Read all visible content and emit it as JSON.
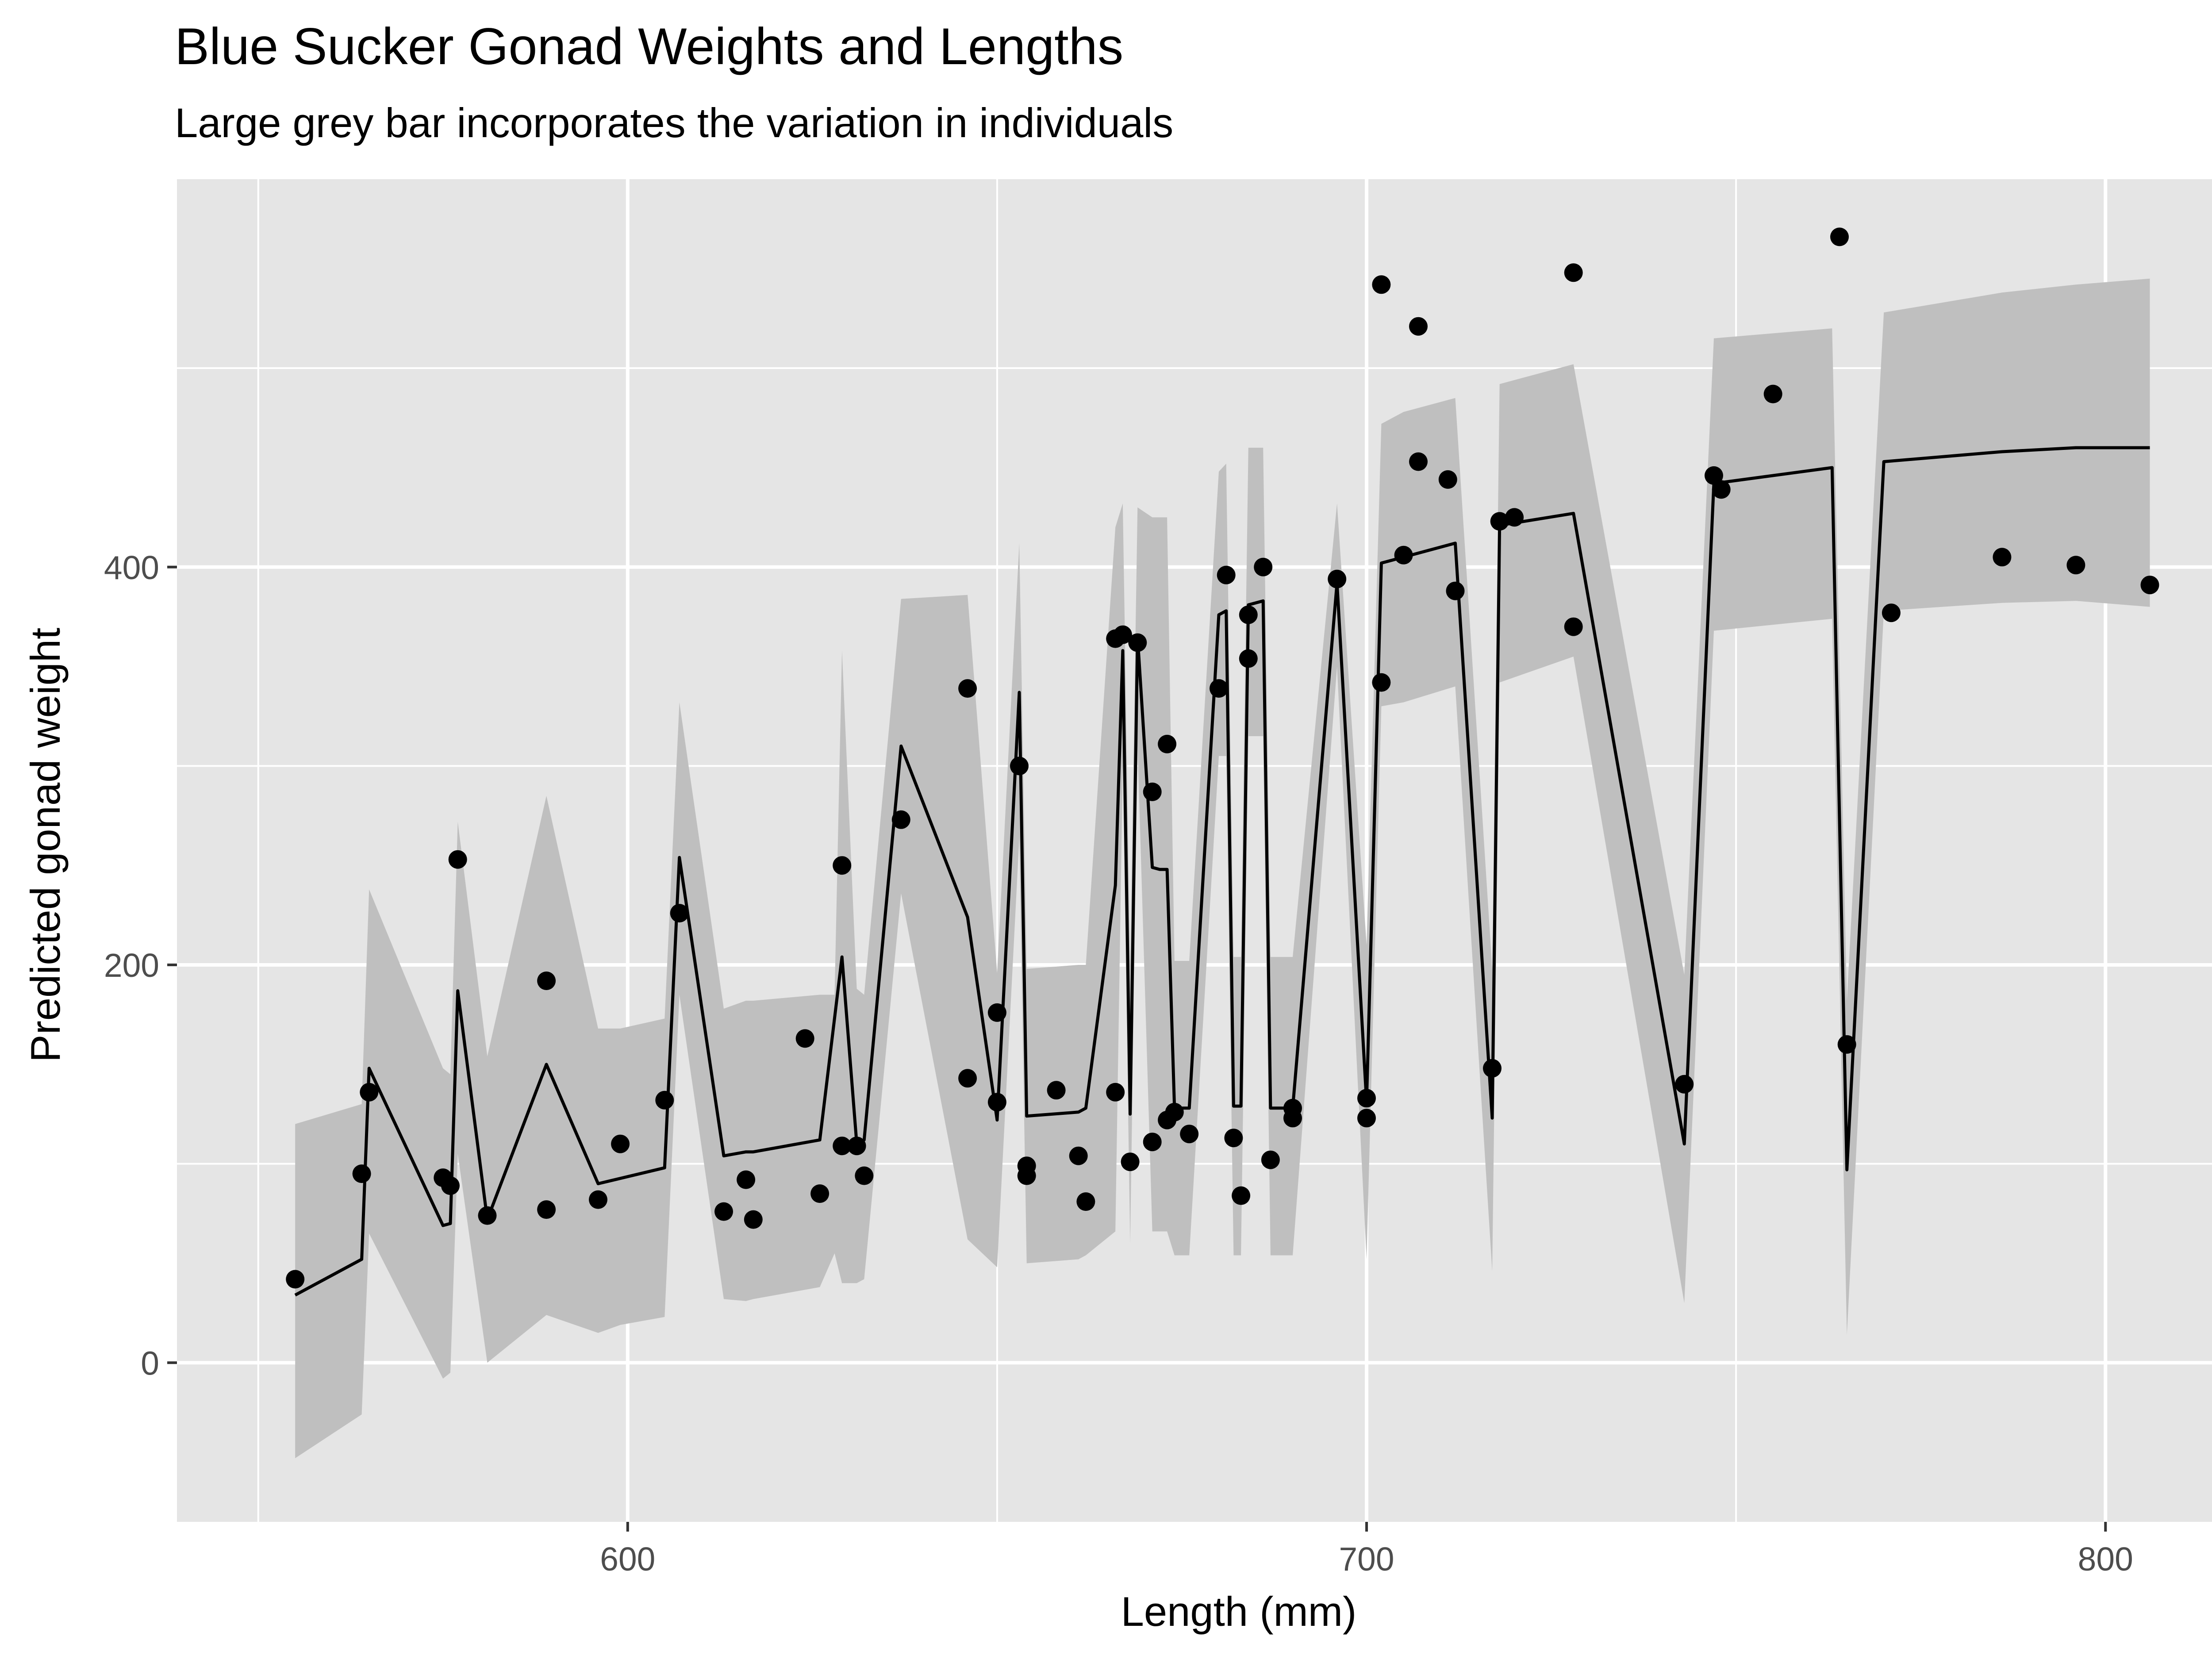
{
  "chart_data": {
    "type": "scatter",
    "title": "Blue Sucker Gonad Weights and Lengths",
    "subtitle": "Large grey bar incorporates the variation in individuals",
    "xlabel": "Length (mm)",
    "ylabel": "Predicted gonad weight",
    "xlim": [
      539,
      821
    ],
    "ylim": [
      -80,
      595
    ],
    "x_ticks": [
      600,
      700,
      800
    ],
    "y_ticks": [
      0,
      200,
      400
    ],
    "x_minor_ticks": [
      550,
      650,
      750
    ],
    "y_minor_ticks": [
      -100,
      100,
      300,
      500
    ],
    "grid": true,
    "legend": "none",
    "colors": {
      "panel": "#e5e5e5",
      "grid": "#ffffff",
      "band": "#bfbfbf",
      "line": "#000000",
      "points": "#000000",
      "tick_label": "#4d4d4d"
    },
    "points": [
      [
        555,
        42
      ],
      [
        564,
        95
      ],
      [
        565,
        136
      ],
      [
        575,
        93
      ],
      [
        576,
        89
      ],
      [
        577,
        253
      ],
      [
        581,
        74
      ],
      [
        589,
        192
      ],
      [
        589,
        77
      ],
      [
        596,
        82
      ],
      [
        599,
        110
      ],
      [
        605,
        132
      ],
      [
        607,
        226
      ],
      [
        613,
        76
      ],
      [
        616,
        92
      ],
      [
        617,
        72
      ],
      [
        624,
        163
      ],
      [
        626,
        85
      ],
      [
        629,
        109
      ],
      [
        629,
        250
      ],
      [
        631,
        109
      ],
      [
        632,
        94
      ],
      [
        637,
        273
      ],
      [
        646,
        339
      ],
      [
        646,
        143
      ],
      [
        650,
        176
      ],
      [
        650,
        131
      ],
      [
        653,
        300
      ],
      [
        654,
        99
      ],
      [
        654,
        94
      ],
      [
        658,
        137
      ],
      [
        661,
        104
      ],
      [
        662,
        81
      ],
      [
        666,
        364
      ],
      [
        666,
        136
      ],
      [
        667,
        366
      ],
      [
        668,
        101
      ],
      [
        669,
        362
      ],
      [
        671,
        287
      ],
      [
        671,
        111
      ],
      [
        673,
        311
      ],
      [
        673,
        122
      ],
      [
        674,
        126
      ],
      [
        676,
        115
      ],
      [
        680,
        339
      ],
      [
        681,
        396
      ],
      [
        682,
        113
      ],
      [
        683,
        84
      ],
      [
        684,
        376
      ],
      [
        684,
        354
      ],
      [
        686,
        400
      ],
      [
        687,
        102
      ],
      [
        690,
        128
      ],
      [
        690,
        123
      ],
      [
        696,
        394
      ],
      [
        700,
        133
      ],
      [
        700,
        123
      ],
      [
        702,
        342
      ],
      [
        702,
        542
      ],
      [
        705,
        406
      ],
      [
        707,
        453
      ],
      [
        707,
        521
      ],
      [
        711,
        444
      ],
      [
        712,
        388
      ],
      [
        717,
        148
      ],
      [
        718,
        423
      ],
      [
        720,
        425
      ],
      [
        728,
        548
      ],
      [
        728,
        370
      ],
      [
        743,
        140
      ],
      [
        747,
        446
      ],
      [
        748,
        439
      ],
      [
        755,
        487
      ],
      [
        764,
        566
      ],
      [
        765,
        160
      ],
      [
        771,
        377
      ],
      [
        786,
        405
      ],
      [
        796,
        401
      ],
      [
        806,
        391
      ]
    ],
    "fit_line": [
      [
        555,
        34
      ],
      [
        564,
        52
      ],
      [
        565,
        148
      ],
      [
        575,
        69
      ],
      [
        576,
        70
      ],
      [
        577,
        187
      ],
      [
        581,
        72
      ],
      [
        589,
        150
      ],
      [
        596,
        90
      ],
      [
        605,
        98
      ],
      [
        607,
        254
      ],
      [
        613,
        104
      ],
      [
        616,
        106
      ],
      [
        617,
        106
      ],
      [
        626,
        112
      ],
      [
        629,
        204
      ],
      [
        631,
        110
      ],
      [
        632,
        112
      ],
      [
        637,
        310
      ],
      [
        646,
        224
      ],
      [
        650,
        122
      ],
      [
        653,
        337
      ],
      [
        654,
        124
      ],
      [
        661,
        126
      ],
      [
        662,
        128
      ],
      [
        666,
        240
      ],
      [
        667,
        358
      ],
      [
        668,
        125
      ],
      [
        669,
        365
      ],
      [
        671,
        249
      ],
      [
        672,
        248
      ],
      [
        673,
        248
      ],
      [
        674,
        128
      ],
      [
        676,
        128
      ],
      [
        680,
        376
      ],
      [
        681,
        378
      ],
      [
        682,
        129
      ],
      [
        683,
        129
      ],
      [
        684,
        381
      ],
      [
        686,
        383
      ],
      [
        687,
        128
      ],
      [
        690,
        128
      ],
      [
        696,
        392
      ],
      [
        700,
        131
      ],
      [
        702,
        402
      ],
      [
        712,
        412
      ],
      [
        717,
        123
      ],
      [
        718,
        421
      ],
      [
        728,
        427
      ],
      [
        743,
        110
      ],
      [
        747,
        442
      ],
      [
        763,
        450
      ],
      [
        765,
        97
      ],
      [
        770,
        453
      ],
      [
        786,
        458
      ],
      [
        796,
        460
      ],
      [
        806,
        460
      ]
    ],
    "ribbon_lower": [
      [
        555,
        -48
      ],
      [
        564,
        -26
      ],
      [
        565,
        65
      ],
      [
        575,
        -8
      ],
      [
        576,
        -5
      ],
      [
        577,
        105
      ],
      [
        581,
        0
      ],
      [
        589,
        24
      ],
      [
        596,
        15
      ],
      [
        599,
        19
      ],
      [
        605,
        23
      ],
      [
        607,
        185
      ],
      [
        613,
        32
      ],
      [
        616,
        31
      ],
      [
        617,
        32
      ],
      [
        626,
        38
      ],
      [
        628,
        55
      ],
      [
        629,
        40
      ],
      [
        631,
        40
      ],
      [
        632,
        42
      ],
      [
        637,
        236
      ],
      [
        646,
        62
      ],
      [
        650,
        48
      ],
      [
        653,
        264
      ],
      [
        654,
        50
      ],
      [
        661,
        52
      ],
      [
        662,
        54
      ],
      [
        666,
        66
      ],
      [
        667,
        300
      ],
      [
        668,
        60
      ],
      [
        669,
        310
      ],
      [
        671,
        66
      ],
      [
        673,
        66
      ],
      [
        674,
        54
      ],
      [
        676,
        54
      ],
      [
        680,
        305
      ],
      [
        681,
        305
      ],
      [
        682,
        54
      ],
      [
        683,
        54
      ],
      [
        684,
        315
      ],
      [
        686,
        315
      ],
      [
        687,
        54
      ],
      [
        690,
        54
      ],
      [
        696,
        350
      ],
      [
        700,
        52
      ],
      [
        702,
        330
      ],
      [
        705,
        332
      ],
      [
        712,
        340
      ],
      [
        717,
        46
      ],
      [
        718,
        342
      ],
      [
        728,
        355
      ],
      [
        743,
        30
      ],
      [
        747,
        368
      ],
      [
        763,
        374
      ],
      [
        765,
        14
      ],
      [
        770,
        378
      ],
      [
        786,
        382
      ],
      [
        796,
        383
      ],
      [
        806,
        380
      ]
    ],
    "ribbon_upper": [
      [
        806,
        545
      ],
      [
        796,
        542
      ],
      [
        786,
        538
      ],
      [
        770,
        528
      ],
      [
        765,
        182
      ],
      [
        763,
        520
      ],
      [
        747,
        515
      ],
      [
        743,
        195
      ],
      [
        728,
        502
      ],
      [
        718,
        492
      ],
      [
        717,
        198
      ],
      [
        712,
        485
      ],
      [
        705,
        478
      ],
      [
        702,
        472
      ],
      [
        700,
        210
      ],
      [
        696,
        432
      ],
      [
        690,
        204
      ],
      [
        687,
        204
      ],
      [
        686,
        460
      ],
      [
        684,
        460
      ],
      [
        683,
        204
      ],
      [
        682,
        204
      ],
      [
        681,
        452
      ],
      [
        680,
        448
      ],
      [
        676,
        202
      ],
      [
        674,
        202
      ],
      [
        673,
        425
      ],
      [
        671,
        425
      ],
      [
        669,
        430
      ],
      [
        668,
        200
      ],
      [
        667,
        432
      ],
      [
        666,
        420
      ],
      [
        662,
        200
      ],
      [
        661,
        200
      ],
      [
        654,
        198
      ],
      [
        653,
        412
      ],
      [
        650,
        196
      ],
      [
        646,
        386
      ],
      [
        637,
        384
      ],
      [
        632,
        185
      ],
      [
        631,
        188
      ],
      [
        629,
        358
      ],
      [
        628,
        185
      ],
      [
        626,
        185
      ],
      [
        617,
        182
      ],
      [
        616,
        182
      ],
      [
        613,
        178
      ],
      [
        607,
        332
      ],
      [
        605,
        173
      ],
      [
        599,
        168
      ],
      [
        596,
        168
      ],
      [
        589,
        285
      ],
      [
        581,
        154
      ],
      [
        577,
        272
      ],
      [
        576,
        145
      ],
      [
        575,
        148
      ],
      [
        565,
        238
      ],
      [
        564,
        130
      ],
      [
        555,
        120
      ]
    ]
  }
}
